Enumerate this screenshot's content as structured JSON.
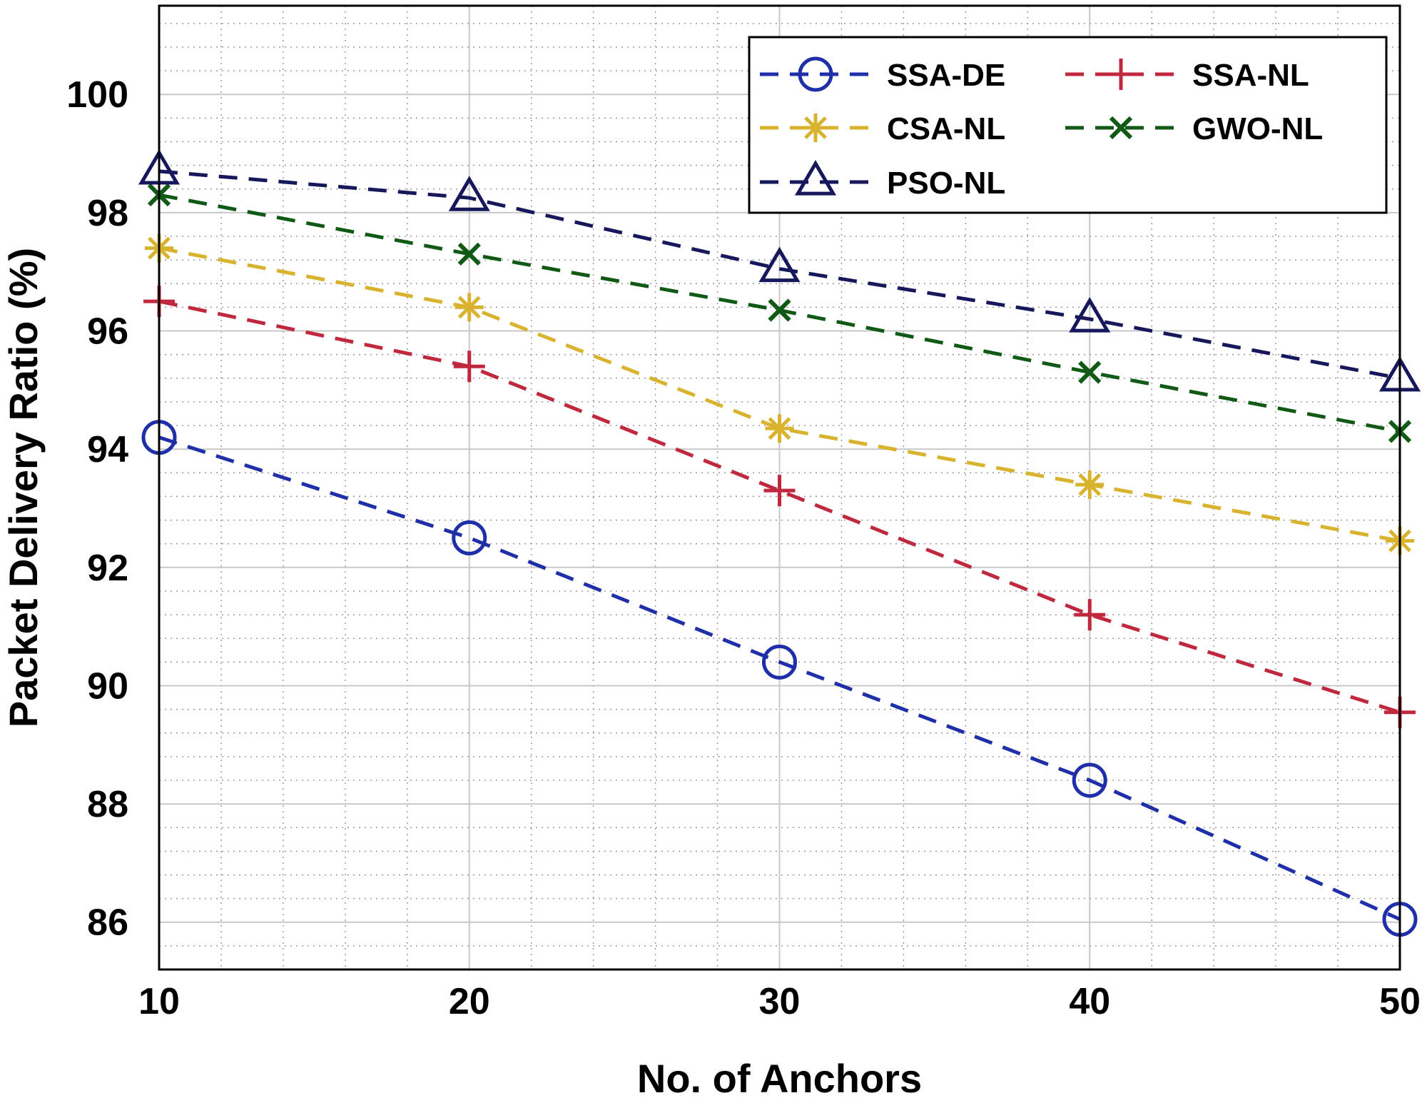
{
  "chart_data": {
    "type": "line",
    "title": "",
    "xlabel": "No. of Anchors",
    "ylabel": "Packet Delivery Ratio (%)",
    "x": [
      10,
      20,
      30,
      40,
      50
    ],
    "xlim": [
      10,
      50
    ],
    "ylim": [
      85.2,
      101.5
    ],
    "xticks": [
      10,
      20,
      30,
      40,
      50
    ],
    "yticks": [
      86,
      88,
      90,
      92,
      94,
      96,
      98,
      100
    ],
    "grid": true,
    "legend_position": "top-right",
    "series": [
      {
        "name": "SSA-DE",
        "color": "#1f2fa8",
        "marker": "circle",
        "values": [
          94.2,
          92.5,
          90.4,
          88.4,
          86.05
        ]
      },
      {
        "name": "SSA-NL",
        "color": "#c0283e",
        "marker": "plus",
        "values": [
          96.5,
          95.4,
          93.3,
          91.2,
          89.55
        ]
      },
      {
        "name": "CSA-NL",
        "color": "#d9b22e",
        "marker": "asterisk",
        "values": [
          97.4,
          96.4,
          94.35,
          93.4,
          92.45
        ]
      },
      {
        "name": "GWO-NL",
        "color": "#115a16",
        "marker": "x",
        "values": [
          98.3,
          97.3,
          96.35,
          95.3,
          94.3
        ]
      },
      {
        "name": "PSO-NL",
        "color": "#17185c",
        "marker": "triangle",
        "values": [
          98.7,
          98.25,
          97.05,
          96.2,
          95.2
        ]
      }
    ]
  }
}
